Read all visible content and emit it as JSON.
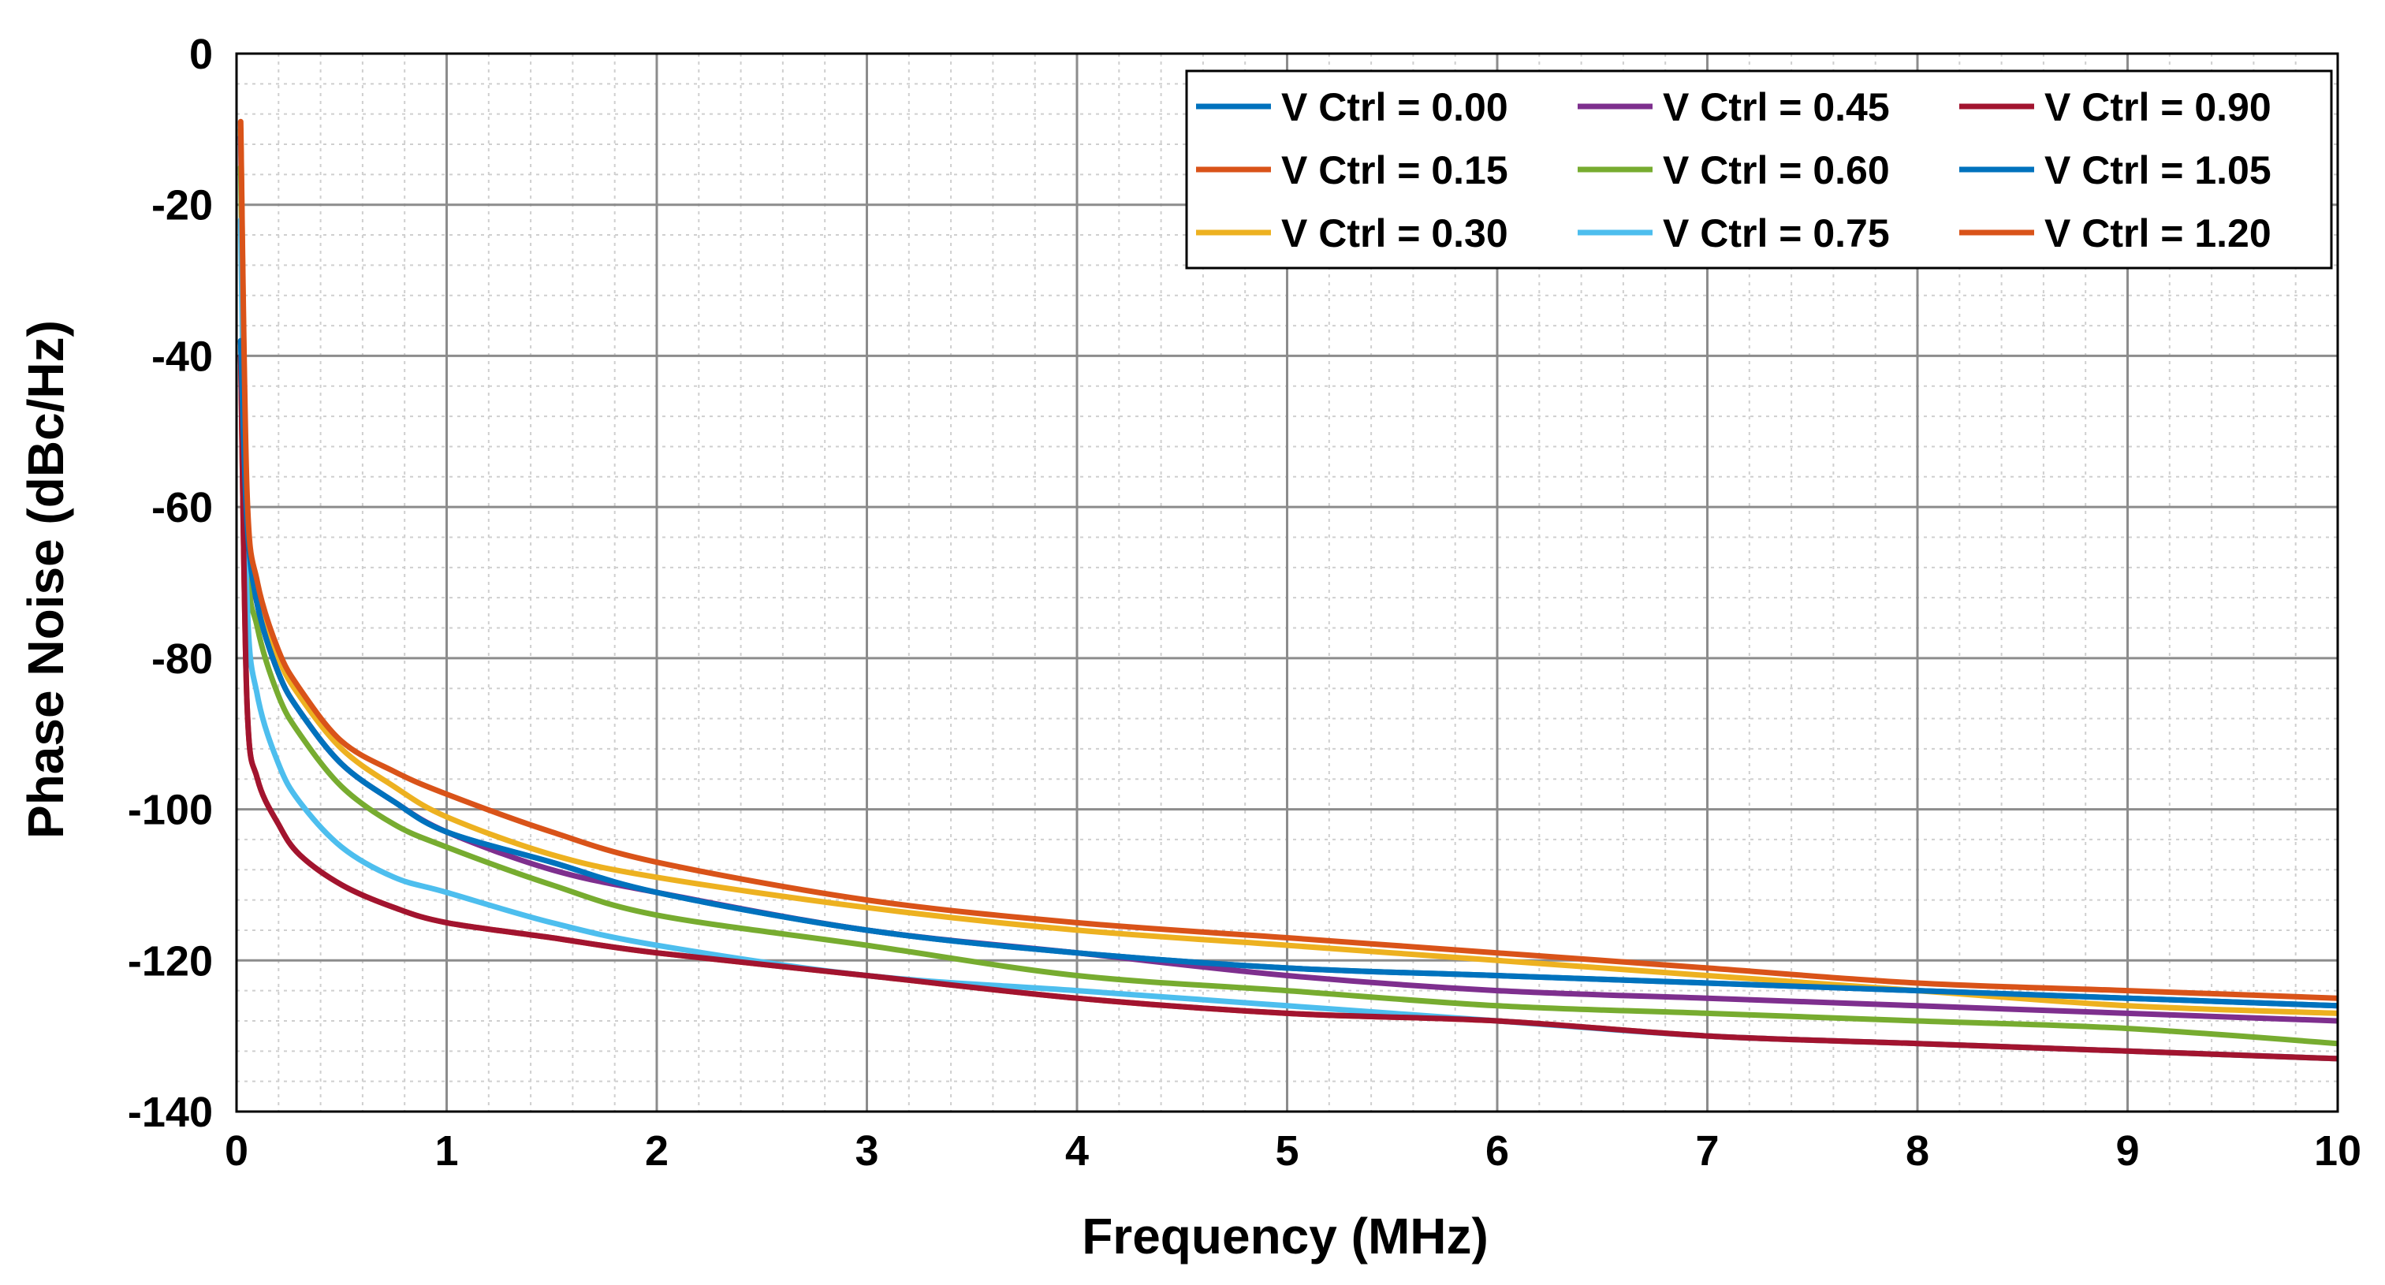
{
  "chart_data": {
    "type": "line",
    "title": "",
    "xlabel": "Frequency (MHz)",
    "ylabel": "Phase Noise (dBc/Hz)",
    "xlim": [
      0,
      10
    ],
    "ylim": [
      -140,
      0
    ],
    "xticks": [
      0,
      1,
      2,
      3,
      4,
      5,
      6,
      7,
      8,
      9,
      10
    ],
    "yticks": [
      0,
      -20,
      -40,
      -60,
      -80,
      -100,
      -120,
      -140
    ],
    "xtick_labels": [
      "0",
      "1",
      "2",
      "3",
      "4",
      "5",
      "6",
      "7",
      "8",
      "9",
      "10"
    ],
    "ytick_labels": [
      "0",
      "-20",
      "-40",
      "-60",
      "-80",
      "-100",
      "-120",
      "-140"
    ],
    "grid": true,
    "minor_grid": true,
    "legend_position": "top-right",
    "legend_columns": 3,
    "x": [
      0.02,
      0.05,
      0.1,
      0.2,
      0.3,
      0.5,
      0.75,
      1,
      1.5,
      2,
      3,
      4,
      5,
      6,
      7,
      8,
      9,
      10
    ],
    "series": [
      {
        "name": "V Ctrl = 0.00",
        "color": "#0072BD",
        "values": [
          -38,
          -62,
          -73,
          -82,
          -87,
          -94,
          -99,
          -103,
          -107,
          -111,
          -116,
          -119,
          -121,
          -122,
          -123,
          -124,
          -125,
          -126
        ]
      },
      {
        "name": "V Ctrl = 0.15",
        "color": "#D95319",
        "values": [
          -40,
          -86,
          -96,
          -102,
          -106,
          -110,
          -113,
          -115,
          -117,
          -119,
          -122,
          -125,
          -127,
          -128,
          -130,
          -131,
          -132,
          -133
        ]
      },
      {
        "name": "V Ctrl = 0.30",
        "color": "#EDB120",
        "values": [
          -10,
          -60,
          -71,
          -80,
          -85,
          -92,
          -97,
          -101,
          -106,
          -109,
          -113,
          -116,
          -118,
          -120,
          -122,
          -124,
          -126,
          -127
        ]
      },
      {
        "name": "V Ctrl = 0.45",
        "color": "#7E2F8E",
        "values": [
          -11,
          -62,
          -73,
          -82,
          -87,
          -94,
          -99,
          -103,
          -108,
          -111,
          -116,
          -119,
          -122,
          -124,
          -125,
          -126,
          -127,
          -128
        ]
      },
      {
        "name": "V Ctrl = 0.60",
        "color": "#77AC30",
        "values": [
          -15,
          -65,
          -76,
          -85,
          -90,
          -97,
          -102,
          -105,
          -110,
          -114,
          -118,
          -122,
          -124,
          -126,
          -127,
          -128,
          -129,
          -131
        ]
      },
      {
        "name": "V Ctrl = 0.75",
        "color": "#4DBEEE",
        "values": [
          -22,
          -72,
          -85,
          -94,
          -99,
          -105,
          -109,
          -111,
          -115,
          -118,
          -122,
          -124,
          -126,
          -128,
          -130,
          -131,
          -132,
          -133
        ]
      },
      {
        "name": "V Ctrl = 0.90",
        "color": "#A2142F",
        "values": [
          -40,
          -86,
          -96,
          -102,
          -106,
          -110,
          -113,
          -115,
          -117,
          -119,
          -122,
          -125,
          -127,
          -128,
          -130,
          -131,
          -132,
          -133
        ]
      },
      {
        "name": "V Ctrl = 1.05",
        "color": "#0072BD",
        "values": [
          -38,
          -62,
          -73,
          -82,
          -87,
          -94,
          -99,
          -103,
          -107,
          -111,
          -116,
          -119,
          -121,
          -122,
          -123,
          -124,
          -125,
          -126
        ]
      },
      {
        "name": "V Ctrl = 1.20",
        "color": "#D95319",
        "values": [
          -9,
          -58,
          -70,
          -79,
          -84,
          -91,
          -95,
          -98,
          -103,
          -107,
          -112,
          -115,
          -117,
          -119,
          -121,
          -123,
          -124,
          -125
        ]
      }
    ]
  }
}
